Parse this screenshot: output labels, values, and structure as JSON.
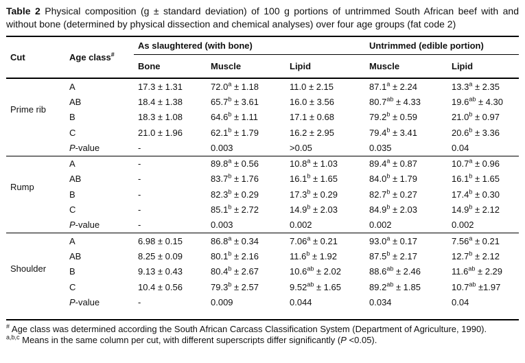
{
  "colors": {
    "background": "#ffffff",
    "text": "#101010",
    "rule": "#000000"
  },
  "caption": {
    "label": "Table 2",
    "text": " Physical composition (g ± standard deviation) of 100 g portions of untrimmed South African beef with and without bone (determined by physical dissection and chemical analyses) over four age groups (fat code 2)"
  },
  "table": {
    "col_headers": {
      "cut": "Cut",
      "age_class": "Age class",
      "age_class_sup": "#",
      "group1": "As slaughtered (with bone)",
      "group2": "Untrimmed (edible portion)",
      "sub": [
        "Bone",
        "Muscle",
        "Lipid",
        "Muscle",
        "Lipid"
      ]
    },
    "sections": [
      {
        "cut": "Prime rib",
        "rows": [
          {
            "age": "A",
            "cells": [
              "17.3 ± 1.31",
              "72.0^a^ ± 1.18",
              "11.0 ± 2.15",
              "87.1^a^ ± 2.24",
              "13.3^a^ ± 2.35"
            ]
          },
          {
            "age": "AB",
            "cells": [
              "18.4 ± 1.38",
              "65.7^b^ ± 3.61",
              "16.0 ± 3.56",
              "80.7^ab^ ± 4.33",
              "19.6^ab^ ± 4.30"
            ]
          },
          {
            "age": "B",
            "cells": [
              "18.3 ± 1.08",
              "64.6^b^ ± 1.11",
              "17.1 ± 0.68",
              "79.2^b^ ± 0.59",
              "21.0^b^ ± 0.97"
            ]
          },
          {
            "age": "C",
            "cells": [
              "21.0 ± 1.96",
              "62.1^b^ ± 1.79",
              "16.2 ± 2.95",
              "79.4^b^ ± 3.41",
              "20.6^b^ ± 3.36"
            ]
          },
          {
            "age": "*P*-value",
            "cells": [
              "-",
              "0.003",
              ">0.05",
              "0.035",
              "0.04"
            ]
          }
        ]
      },
      {
        "cut": "Rump",
        "rows": [
          {
            "age": "A",
            "cells": [
              "-",
              "89.8^a^ ± 0.56",
              "10.8^a^ ± 1.03",
              "89.4^a^ ± 0.87",
              "10.7^a^ ± 0.96"
            ]
          },
          {
            "age": "AB",
            "cells": [
              "-",
              "83.7^b^ ± 1.76",
              "16.1^b^ ± 1.65",
              "84.0^b^ ± 1.79",
              "16.1^b^ ± 1.65"
            ]
          },
          {
            "age": "B",
            "cells": [
              "-",
              "82.3^b^ ± 0.29",
              "17.3^b^ ± 0.29",
              "82.7^b^ ± 0.27",
              "17.4^b^ ± 0.30"
            ]
          },
          {
            "age": "C",
            "cells": [
              "-",
              "85.1^b^ ± 2.72",
              "14.9^b^ ± 2.03",
              "84.9^b^ ± 2.03",
              "14.9^b^ ± 2.12"
            ]
          },
          {
            "age": "*P*-value",
            "cells": [
              "-",
              "0.003",
              "0.002",
              "0.002",
              "0.002"
            ]
          }
        ]
      },
      {
        "cut": "Shoulder",
        "rows": [
          {
            "age": "A",
            "cells": [
              "6.98 ± 0.15",
              "86.8^a^ ± 0.34",
              "7.06^a^ ± 0.21",
              "93.0^a^ ± 0.17",
              "7.56^a^ ± 0.21"
            ]
          },
          {
            "age": "AB",
            "cells": [
              "8.25 ± 0.09",
              "80.1^b^ ± 2.16",
              "11.6^b^ ± 1.92",
              "87.5^b^ ± 2.17",
              "12.7^b^ ± 2.12"
            ]
          },
          {
            "age": "B",
            "cells": [
              "9.13 ± 0.43",
              "80.4^b^ ± 2.67",
              "10.6^ab^ ± 2.02",
              "88.6^ab^ ± 2.46",
              "11.6^ab^ ± 2.29"
            ]
          },
          {
            "age": "C",
            "cells": [
              "10.4 ± 0.56",
              "79.3^b^ ± 2.57",
              "9.52^ab^ ± 1.65",
              "89.2^ab^ ± 1.85",
              "10.7^ab^ ±1.97"
            ]
          },
          {
            "age": "*P*-value",
            "cells": [
              "-",
              "0.009",
              "0.044",
              "0.034",
              "0.04"
            ]
          }
        ]
      }
    ]
  },
  "footnotes": [
    {
      "sup": "#",
      "text": " Age class was determined according the South African Carcass Classification System (Department of Agriculture, 1990)."
    },
    {
      "sup": "a,b,c",
      "text": " Means in the same column per cut, with different superscripts differ significantly (*P* <0.05)."
    }
  ]
}
